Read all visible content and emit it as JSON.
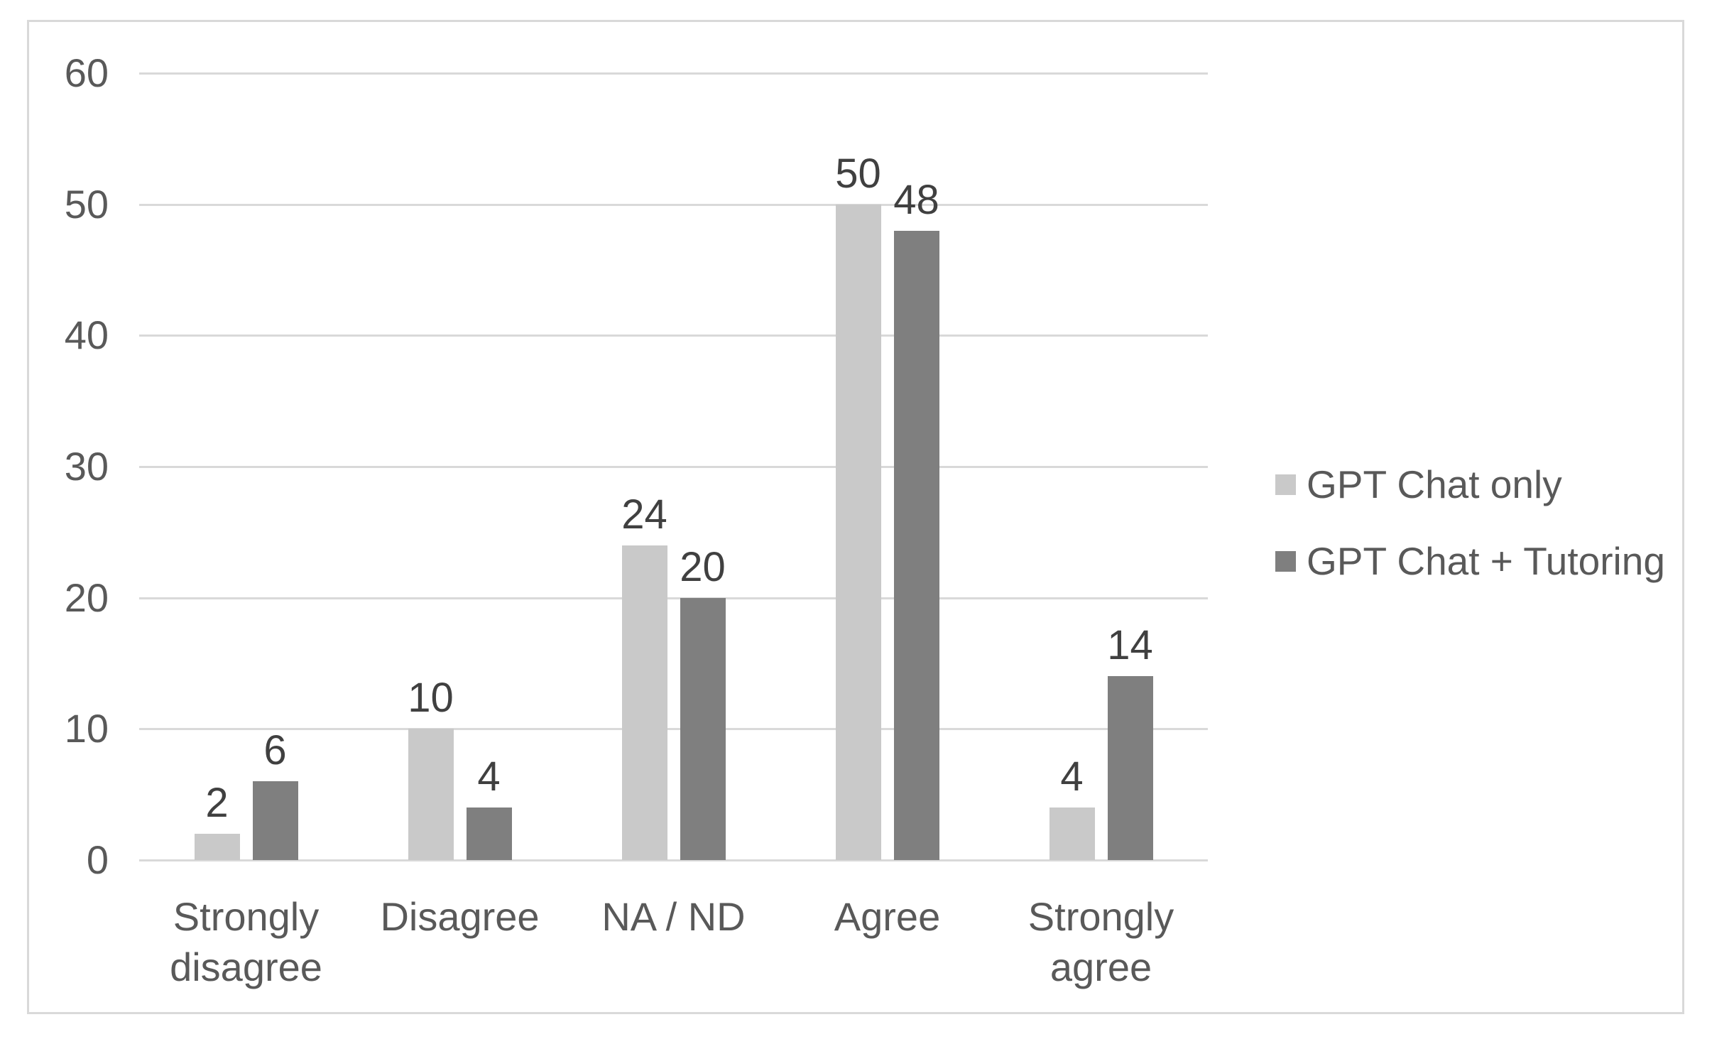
{
  "chart_data": {
    "type": "bar",
    "title": "",
    "xlabel": "",
    "ylabel": "",
    "categories": [
      "Strongly\ndisagree",
      "Disagree",
      "NA / ND",
      "Agree",
      "Strongly\nagree"
    ],
    "series": [
      {
        "name": "GPT Chat only",
        "color": "#c9c9c9",
        "values": [
          2,
          10,
          24,
          50,
          4
        ]
      },
      {
        "name": "GPT Chat + Tutoring",
        "color": "#7f7f7f",
        "values": [
          6,
          4,
          20,
          48,
          14
        ]
      }
    ],
    "ylim": [
      0,
      60
    ],
    "yticks": [
      0,
      10,
      20,
      30,
      40,
      50,
      60
    ],
    "grid": "horizontal",
    "legend_position": "right",
    "data_labels": true
  },
  "colors": {
    "background": "#ffffff",
    "frame_border": "#d9d9d9",
    "gridline": "#d9d9d9",
    "axis_text": "#595959",
    "data_label_text": "#404040"
  }
}
